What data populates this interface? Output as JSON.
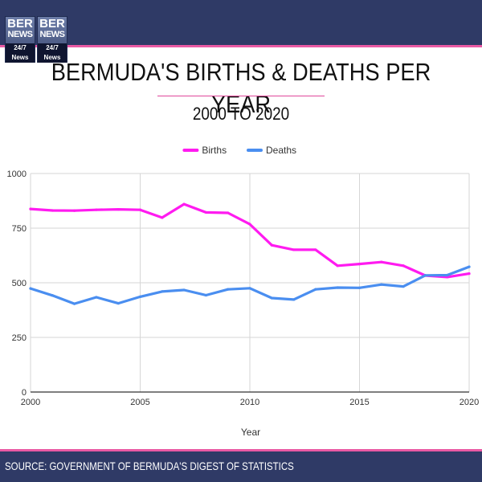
{
  "logo": {
    "left": {
      "top": "BER",
      "bottom": "NEWS",
      "tag": "24/7 News"
    },
    "right": {
      "top": "BER",
      "bottom": "NEWS",
      "tag": "24/7 News"
    }
  },
  "header": {
    "title": "BERMUDA'S BIRTHS & DEATHS PER YEAR",
    "subtitle": "2000 TO 2020"
  },
  "footer": {
    "source": "SOURCE: GOVERNMENT OF BERMUDA'S DIGEST OF STATISTICS"
  },
  "colors": {
    "brand_bar": "#2f3a66",
    "accent_line": "#ea5aa4",
    "births": "#ff1bf0",
    "deaths": "#4a8ef0"
  },
  "chart_data": {
    "type": "line",
    "xlabel": "Year",
    "ylabel": "",
    "x": [
      2000,
      2001,
      2002,
      2003,
      2004,
      2005,
      2006,
      2007,
      2008,
      2009,
      2010,
      2011,
      2012,
      2013,
      2014,
      2015,
      2016,
      2017,
      2018,
      2019,
      2020
    ],
    "xlim": [
      2000,
      2020
    ],
    "ylim": [
      0,
      1000
    ],
    "x_ticks": [
      "2000",
      "2005",
      "2010",
      "2015",
      "2020"
    ],
    "x_tick_values": [
      2000,
      2005,
      2010,
      2015,
      2020
    ],
    "y_ticks": [
      "0",
      "250",
      "500",
      "750",
      "1000"
    ],
    "y_tick_values": [
      0,
      250,
      500,
      750,
      1000
    ],
    "grid": true,
    "legend_position": "top-center",
    "series": [
      {
        "name": "Births",
        "color": "#ff1bf0",
        "values": [
          838,
          831,
          830,
          834,
          836,
          834,
          798,
          860,
          822,
          820,
          768,
          672,
          651,
          651,
          578,
          586,
          595,
          578,
          533,
          526,
          542
        ]
      },
      {
        "name": "Deaths",
        "color": "#4a8ef0",
        "values": [
          474,
          442,
          404,
          434,
          406,
          436,
          460,
          467,
          443,
          470,
          475,
          430,
          423,
          470,
          478,
          477,
          492,
          483,
          534,
          535,
          573
        ]
      }
    ]
  }
}
